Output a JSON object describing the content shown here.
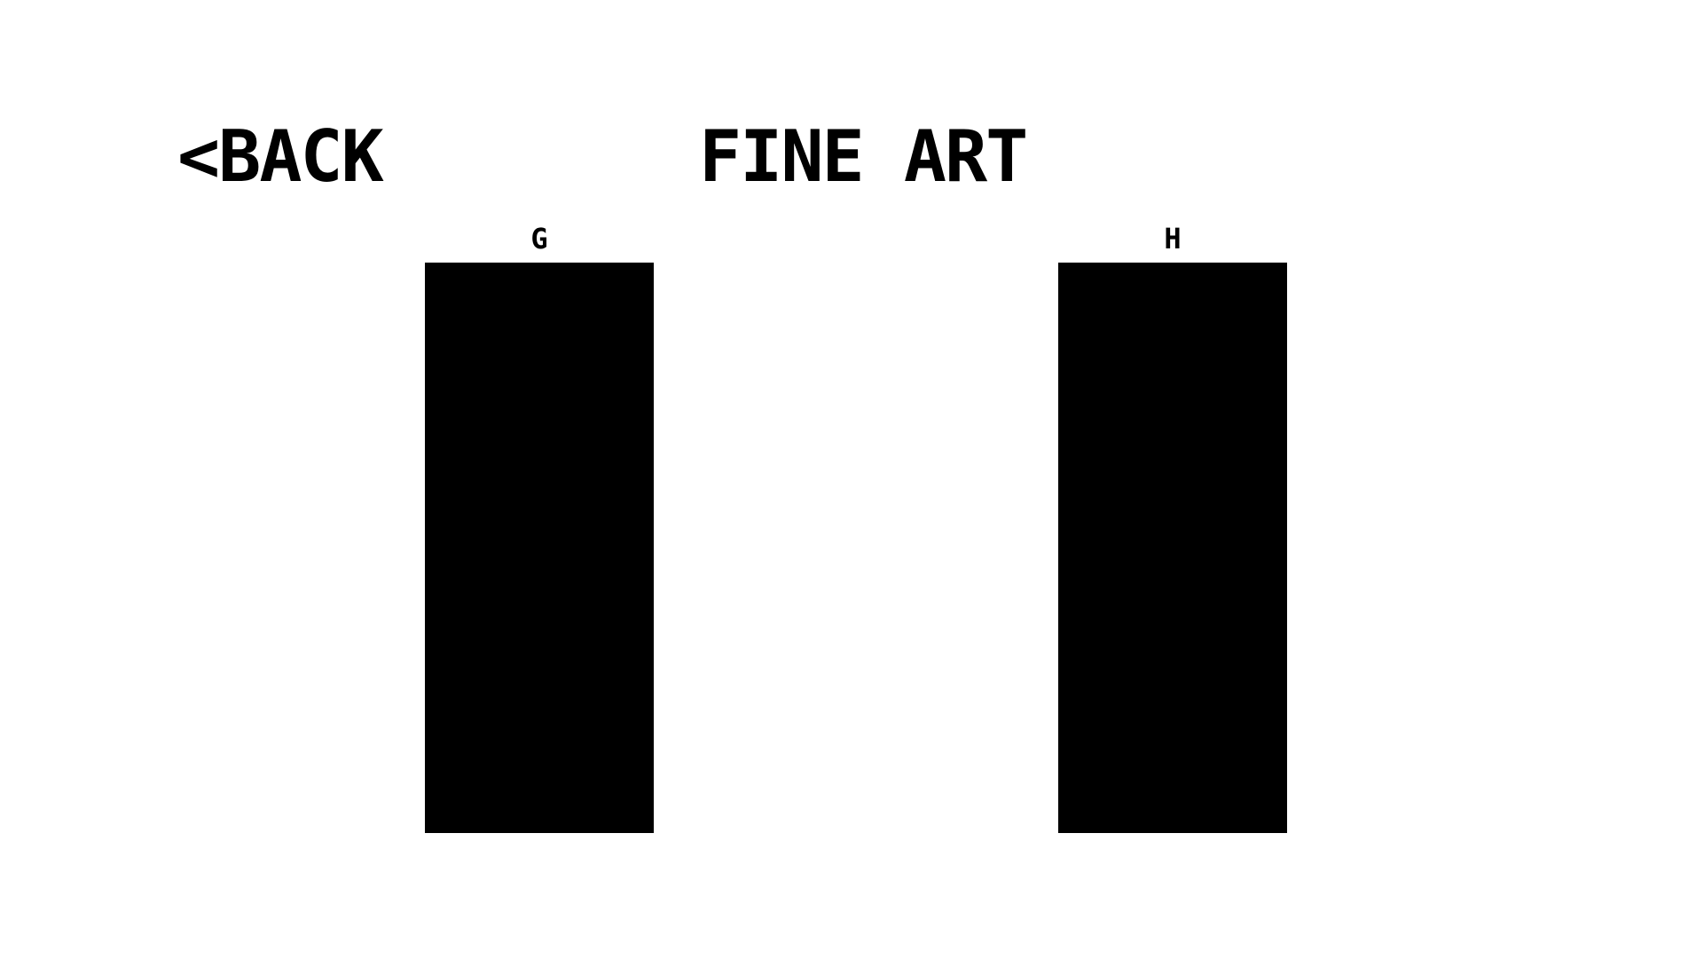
{
  "header": {
    "back_label": "<BACK",
    "title": "FINE ART"
  },
  "gallery": {
    "items": [
      {
        "label": "G"
      },
      {
        "label": "H"
      }
    ]
  },
  "colors": {
    "background": "#ffffff",
    "foreground": "#000000"
  }
}
